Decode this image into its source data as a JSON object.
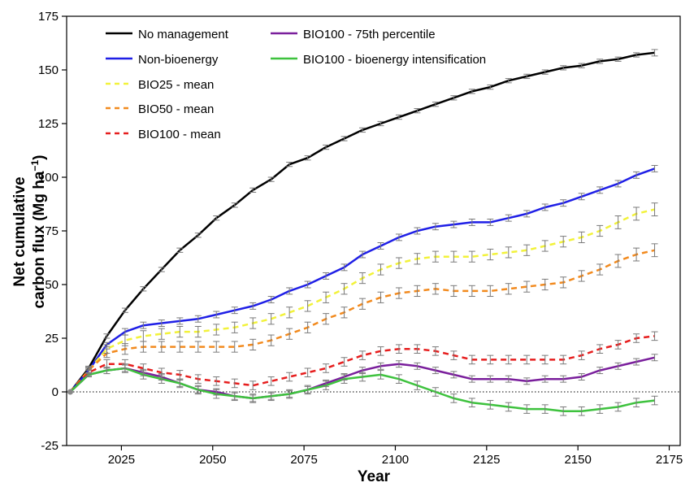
{
  "chart_data": {
    "type": "line",
    "title": "",
    "xlabel": "Year",
    "ylabel_line1": "Net cumulative",
    "ylabel_line2": "carbon flux (Mg ha",
    "ylabel_sup": "−1",
    "ylabel_close": ")",
    "xlim": [
      2010,
      2178
    ],
    "ylim": [
      -25,
      175
    ],
    "xticks": [
      2025,
      2050,
      2075,
      2100,
      2125,
      2150,
      2175
    ],
    "yticks": [
      -25,
      0,
      25,
      50,
      75,
      100,
      125,
      150,
      175
    ],
    "zero_line": true,
    "grid": false,
    "legend_position": "top-left",
    "x": [
      2011,
      2016,
      2021,
      2026,
      2031,
      2036,
      2041,
      2046,
      2051,
      2056,
      2061,
      2066,
      2071,
      2076,
      2081,
      2086,
      2091,
      2096,
      2101,
      2106,
      2111,
      2116,
      2121,
      2126,
      2131,
      2136,
      2141,
      2146,
      2151,
      2156,
      2161,
      2166,
      2171
    ],
    "series": [
      {
        "name": "No management",
        "color": "#000000",
        "dash": "solid",
        "values": [
          0,
          11,
          26,
          38,
          48,
          57,
          66,
          73,
          81,
          87,
          94,
          99,
          106,
          109,
          114,
          118,
          122,
          125,
          128,
          131,
          134,
          137,
          140,
          142,
          145,
          147,
          149,
          151,
          152,
          154,
          155,
          157,
          158
        ]
      },
      {
        "name": "Non-bioenergy",
        "color": "#1f1fe6",
        "dash": "solid",
        "values": [
          0,
          10,
          22,
          28,
          31,
          32,
          33,
          34,
          36,
          38,
          40,
          43,
          47,
          50,
          54,
          58,
          64,
          68,
          72,
          75,
          77,
          78,
          79,
          79,
          81,
          83,
          86,
          88,
          91,
          94,
          97,
          101,
          104
        ]
      },
      {
        "name": "BIO25 - mean",
        "color": "#f2f23a",
        "dash": "dashed",
        "values": [
          0,
          10,
          20,
          24,
          26,
          27,
          28,
          28,
          29,
          30,
          32,
          34,
          37,
          40,
          44,
          48,
          53,
          57,
          60,
          62,
          63,
          63,
          63,
          64,
          65,
          66,
          68,
          70,
          72,
          75,
          79,
          83,
          85
        ]
      },
      {
        "name": "BIO50 - mean",
        "color": "#f28a1e",
        "dash": "dashed",
        "values": [
          0,
          10,
          18,
          20,
          21,
          21,
          21,
          21,
          21,
          21,
          22,
          24,
          27,
          30,
          34,
          37,
          41,
          44,
          46,
          47,
          48,
          47,
          47,
          47,
          48,
          49,
          50,
          51,
          54,
          57,
          61,
          64,
          66
        ]
      },
      {
        "name": "BIO100 - mean",
        "color": "#e61e1e",
        "dash": "dashed",
        "values": [
          0,
          9,
          13,
          13,
          11,
          9,
          8,
          6,
          5,
          4,
          3,
          5,
          7,
          9,
          11,
          14,
          17,
          19,
          20,
          20,
          19,
          17,
          15,
          15,
          15,
          15,
          15,
          15,
          17,
          20,
          22,
          25,
          26
        ]
      },
      {
        "name": "BIO100 - 75th percentile",
        "color": "#7a1f9c",
        "dash": "solid",
        "values": [
          0,
          8,
          10,
          11,
          9,
          7,
          4,
          1,
          0,
          -2,
          -3,
          -2,
          -1,
          1,
          4,
          7,
          10,
          12,
          13,
          12,
          10,
          8,
          6,
          6,
          6,
          5,
          6,
          6,
          7,
          10,
          12,
          14,
          16
        ]
      },
      {
        "name": "BIO100 - bioenergy intensification",
        "color": "#3ec23e",
        "dash": "solid",
        "values": [
          0,
          8,
          10,
          11,
          8,
          6,
          4,
          1,
          -1,
          -2,
          -3,
          -2,
          -1,
          1,
          3,
          6,
          7,
          8,
          6,
          3,
          0,
          -3,
          -5,
          -6,
          -7,
          -8,
          -8,
          -9,
          -9,
          -8,
          -7,
          -5,
          -4
        ]
      }
    ],
    "error_bar_color": "#7a7a7a",
    "error_half_width": [
      [
        0,
        1,
        1,
        1,
        1,
        1,
        1,
        1,
        1,
        1,
        1,
        1,
        1,
        1,
        1,
        1,
        1,
        1,
        1,
        1,
        1,
        1,
        1,
        1,
        1,
        1,
        1,
        1,
        1,
        1,
        1,
        1,
        1.5
      ],
      [
        0,
        1,
        1,
        1.5,
        1.5,
        1.5,
        1.5,
        1.5,
        1.5,
        1.5,
        1.5,
        1.5,
        1.5,
        1.5,
        1.5,
        1.5,
        1.5,
        1.5,
        1.5,
        1.5,
        1.5,
        1.5,
        1.5,
        1.5,
        1.5,
        1.5,
        1.5,
        1.5,
        1.5,
        1.5,
        1.5,
        1.5,
        1.5
      ],
      [
        0,
        1.5,
        2,
        2.5,
        2.5,
        2.5,
        2.5,
        2.5,
        2.5,
        2.5,
        2.5,
        2.5,
        2.5,
        2.5,
        2.5,
        2.5,
        2.5,
        2.5,
        2.5,
        2.5,
        2.5,
        2.5,
        2.5,
        2.5,
        2.5,
        2.5,
        2.5,
        2.5,
        2.5,
        2.5,
        3,
        3,
        3
      ],
      [
        0,
        1.5,
        2,
        2.5,
        2.5,
        2.5,
        2.5,
        2.5,
        2.5,
        2.5,
        2.5,
        2.5,
        2.5,
        2.5,
        2.5,
        2.5,
        2.5,
        2.5,
        2.5,
        2.5,
        2.5,
        2.5,
        2.5,
        2.5,
        2.5,
        2.5,
        2.5,
        2.5,
        2.5,
        2.5,
        3,
        3,
        3
      ],
      [
        0,
        1.5,
        2,
        2,
        2,
        2,
        2,
        2,
        2,
        2,
        2,
        2,
        2,
        2,
        2,
        2,
        2,
        2,
        2,
        2,
        2,
        2,
        2,
        2,
        2,
        2,
        2,
        2,
        2,
        2,
        2,
        2,
        2
      ],
      [
        0,
        1,
        1.5,
        1.5,
        1.5,
        1.5,
        1.5,
        1.5,
        1.5,
        1.5,
        1.5,
        1.5,
        1.5,
        1.5,
        1.5,
        1.5,
        1.5,
        1.5,
        1.5,
        1.5,
        1.5,
        1.5,
        1.5,
        1.5,
        1.5,
        1.5,
        1.5,
        1.5,
        1.5,
        1.5,
        1.5,
        1.5,
        1.5
      ],
      [
        0,
        1,
        1.5,
        2,
        2,
        2,
        2,
        2,
        2,
        2,
        2,
        2,
        2,
        2,
        2,
        2,
        2,
        2,
        2,
        2,
        2,
        2,
        2,
        2,
        2,
        2,
        2,
        2,
        2,
        2,
        2,
        2,
        2
      ]
    ]
  }
}
